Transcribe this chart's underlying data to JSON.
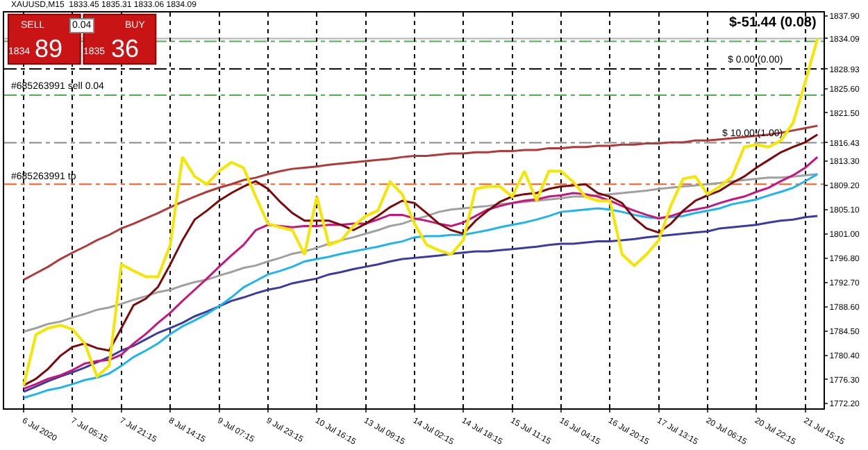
{
  "chart_data": {
    "type": "line",
    "title": "XAUUSD,M15  1833.45 1835.31 1833.06 1834.09",
    "categories": [
      "6 Jul 2020",
      null,
      null,
      null,
      "7 Jul 05:15",
      null,
      null,
      null,
      "7 Jul 21:15",
      null,
      null,
      null,
      "8 Jul 14:15",
      null,
      null,
      null,
      "9 Jul 07:15",
      null,
      null,
      null,
      "9 Jul 23:15",
      null,
      null,
      null,
      "10 Jul 16:15",
      null,
      null,
      null,
      "13 Jul 09:15",
      null,
      null,
      null,
      "14 Jul 02:15",
      null,
      null,
      null,
      "14 Jul 18:15",
      null,
      null,
      null,
      "15 Jul 11:15",
      null,
      null,
      null,
      "16 Jul 04:15",
      null,
      null,
      null,
      "16 Jul 20:15",
      null,
      null,
      null,
      "17 Jul 13:15",
      null,
      null,
      null,
      "20 Jul 06:15",
      null,
      null,
      null,
      "20 Jul 22:15",
      null,
      null,
      null,
      "21 Jul 15:15",
      null
    ],
    "series": [
      {
        "color": "#b03a3a",
        "values": [
          1793.2,
          1794.3,
          1795.4,
          1796.7,
          1797.8,
          1798.8,
          1799.9,
          1800.8,
          1801.9,
          1802.7,
          1803.6,
          1804.5,
          1805.5,
          1806.4,
          1807.3,
          1808.1,
          1808.8,
          1809.4,
          1810.1,
          1810.5,
          1811.1,
          1811.6,
          1812.0,
          1812.2,
          1812.4,
          1812.7,
          1812.9,
          1813.1,
          1813.3,
          1813.5,
          1813.7,
          1814.0,
          1814.2,
          1814.2,
          1814.4,
          1814.6,
          1814.6,
          1814.8,
          1814.8,
          1815.0,
          1815.0,
          1815.2,
          1815.2,
          1815.5,
          1815.5,
          1815.7,
          1815.7,
          1815.9,
          1815.9,
          1816.1,
          1816.1,
          1816.3,
          1816.3,
          1816.5,
          1816.5,
          1816.8,
          1816.8,
          1817.0,
          1817.2,
          1817.4,
          1817.6,
          1817.8,
          1818.1,
          1818.5,
          1818.9,
          1819.3
        ]
      },
      {
        "color": "#a0a0a0",
        "values": [
          1784.4,
          1785.0,
          1785.7,
          1786.1,
          1786.8,
          1787.4,
          1788.1,
          1788.5,
          1789.1,
          1789.8,
          1790.4,
          1791.1,
          1791.5,
          1792.2,
          1792.8,
          1793.2,
          1793.9,
          1794.5,
          1795.2,
          1795.6,
          1796.3,
          1796.9,
          1797.6,
          1798.0,
          1798.6,
          1799.3,
          1799.9,
          1800.4,
          1801.0,
          1801.6,
          1802.3,
          1802.7,
          1803.4,
          1804.0,
          1804.7,
          1805.1,
          1805.3,
          1805.5,
          1805.7,
          1806.0,
          1806.2,
          1806.4,
          1806.6,
          1806.8,
          1807.0,
          1807.3,
          1807.3,
          1807.5,
          1807.7,
          1807.9,
          1808.1,
          1808.3,
          1808.6,
          1808.8,
          1809.0,
          1809.2,
          1809.4,
          1809.6,
          1809.9,
          1810.1,
          1810.3,
          1810.5,
          1810.5,
          1810.7,
          1810.9,
          1811.1
        ]
      },
      {
        "color": "#3a3aa0",
        "values": [
          1774.2,
          1775.1,
          1776.0,
          1776.8,
          1777.5,
          1778.3,
          1779.2,
          1780.1,
          1781.2,
          1782.0,
          1783.1,
          1784.2,
          1785.0,
          1785.9,
          1787.0,
          1787.8,
          1788.7,
          1789.6,
          1790.2,
          1790.9,
          1791.5,
          1791.9,
          1792.6,
          1793.0,
          1793.4,
          1794.1,
          1794.5,
          1795.0,
          1795.4,
          1795.8,
          1796.3,
          1796.7,
          1796.9,
          1797.1,
          1797.3,
          1797.6,
          1797.8,
          1798.0,
          1798.0,
          1798.2,
          1798.4,
          1798.6,
          1798.8,
          1799.1,
          1799.3,
          1799.3,
          1799.5,
          1799.7,
          1799.7,
          1799.9,
          1800.1,
          1800.4,
          1800.6,
          1800.8,
          1801.0,
          1801.2,
          1801.4,
          1801.9,
          1802.1,
          1802.3,
          1802.5,
          1802.9,
          1803.2,
          1803.4,
          1803.8,
          1804.0
        ]
      },
      {
        "color": "#1eb4ec",
        "values": [
          1773.2,
          1773.8,
          1774.5,
          1774.9,
          1775.5,
          1776.2,
          1776.6,
          1777.3,
          1778.6,
          1780.1,
          1781.2,
          1782.4,
          1784.0,
          1785.3,
          1786.3,
          1787.4,
          1788.7,
          1790.2,
          1791.9,
          1793.0,
          1794.1,
          1794.7,
          1795.4,
          1796.3,
          1796.7,
          1797.1,
          1797.6,
          1798.0,
          1798.4,
          1798.8,
          1799.3,
          1799.7,
          1800.4,
          1800.6,
          1800.6,
          1800.8,
          1800.8,
          1801.2,
          1801.6,
          1802.1,
          1802.5,
          1802.9,
          1803.4,
          1804.0,
          1804.7,
          1804.9,
          1805.1,
          1805.3,
          1805.1,
          1804.7,
          1804.2,
          1803.8,
          1803.6,
          1803.8,
          1804.0,
          1804.5,
          1804.9,
          1805.3,
          1806.0,
          1806.4,
          1806.8,
          1807.5,
          1808.1,
          1808.8,
          1809.9,
          1811.1
        ]
      },
      {
        "color": "#c8157e",
        "values": [
          1774.7,
          1775.5,
          1776.4,
          1777.0,
          1777.9,
          1779.0,
          1779.4,
          1779.6,
          1780.5,
          1782.4,
          1784.0,
          1785.9,
          1787.6,
          1789.6,
          1791.5,
          1793.4,
          1795.4,
          1797.3,
          1799.1,
          1801.6,
          1802.5,
          1802.3,
          1802.1,
          1802.3,
          1802.3,
          1802.5,
          1802.5,
          1802.7,
          1802.7,
          1803.4,
          1804.2,
          1804.2,
          1803.6,
          1803.2,
          1802.7,
          1802.3,
          1802.9,
          1804.0,
          1805.1,
          1805.7,
          1806.2,
          1806.6,
          1806.8,
          1807.3,
          1807.5,
          1807.9,
          1807.7,
          1807.3,
          1806.6,
          1805.7,
          1804.9,
          1804.2,
          1803.6,
          1804.0,
          1804.7,
          1805.1,
          1805.5,
          1806.2,
          1806.8,
          1807.3,
          1808.1,
          1808.8,
          1809.9,
          1810.9,
          1812.2,
          1814.0
        ]
      },
      {
        "color": "#7a0a0a",
        "values": [
          1775.3,
          1776.4,
          1778.1,
          1780.3,
          1781.8,
          1782.4,
          1781.6,
          1781.2,
          1785.0,
          1788.9,
          1790.0,
          1792.0,
          1795.8,
          1799.9,
          1803.4,
          1804.9,
          1806.6,
          1807.9,
          1809.0,
          1809.9,
          1808.6,
          1806.4,
          1804.5,
          1803.2,
          1803.2,
          1803.2,
          1802.5,
          1801.6,
          1802.7,
          1804.0,
          1805.5,
          1806.6,
          1806.2,
          1804.5,
          1802.7,
          1801.6,
          1801.0,
          1803.2,
          1804.9,
          1806.4,
          1807.3,
          1807.7,
          1807.9,
          1808.6,
          1809.0,
          1809.2,
          1809.4,
          1807.9,
          1807.3,
          1806.2,
          1803.6,
          1801.9,
          1801.2,
          1802.7,
          1804.9,
          1806.6,
          1807.5,
          1808.3,
          1809.6,
          1810.7,
          1812.2,
          1813.5,
          1814.8,
          1815.7,
          1816.5,
          1817.8
        ]
      },
      {
        "color": "#f5e600",
        "values": [
          1775.3,
          1783.9,
          1785.0,
          1785.5,
          1784.8,
          1782.4,
          1776.8,
          1778.6,
          1795.8,
          1794.7,
          1793.7,
          1793.7,
          1799.1,
          1814.0,
          1810.7,
          1809.4,
          1811.6,
          1813.1,
          1812.2,
          1807.3,
          1802.7,
          1802.1,
          1801.6,
          1797.5,
          1807.3,
          1799.1,
          1799.9,
          1802.3,
          1804.0,
          1804.9,
          1809.8,
          1807.7,
          1802.7,
          1799.1,
          1798.2,
          1797.5,
          1799.9,
          1808.6,
          1809.0,
          1809.0,
          1807.3,
          1811.6,
          1806.6,
          1811.6,
          1811.6,
          1809.8,
          1807.3,
          1806.6,
          1806.6,
          1797.5,
          1795.6,
          1797.5,
          1799.9,
          1805.8,
          1810.3,
          1810.7,
          1807.7,
          1809.0,
          1810.7,
          1815.7,
          1816.1,
          1815.7,
          1816.8,
          1819.8,
          1826.7,
          1834.1
        ]
      }
    ],
    "ylim": [
      1771.4,
      1838.5
    ],
    "yticks": [
      {
        "value": 1837.9,
        "label": "1837.90"
      },
      {
        "value": 1834.09,
        "label": "1834.09"
      },
      {
        "value": 1828.93,
        "label": "1828.93"
      },
      {
        "value": 1825.6,
        "label": "1825.60"
      },
      {
        "value": 1821.5,
        "label": "1821.50"
      },
      {
        "value": 1816.43,
        "label": "1816.43"
      },
      {
        "value": 1813.3,
        "label": "1813.30"
      },
      {
        "value": 1809.2,
        "label": "1809.20"
      },
      {
        "value": 1805.1,
        "label": "1805.10"
      },
      {
        "value": 1801.0,
        "label": "1801.00"
      },
      {
        "value": 1796.8,
        "label": "1796.80"
      },
      {
        "value": 1792.7,
        "label": "1792.70"
      },
      {
        "value": 1788.6,
        "label": "1788.60"
      },
      {
        "value": 1784.5,
        "label": "1784.50"
      },
      {
        "value": 1780.4,
        "label": "1780.40"
      },
      {
        "value": 1776.3,
        "label": "1776.30"
      },
      {
        "value": 1772.2,
        "label": "1772.20"
      }
    ],
    "grid": "x",
    "ref_lines": [
      {
        "axis": "y",
        "value": 1834.09,
        "color": "#b4b4b4",
        "line_style": "solid"
      },
      {
        "axis": "y",
        "value": 1833.6,
        "color": "#4caf50",
        "line_style": "dashed"
      },
      {
        "axis": "y",
        "value": 1828.93,
        "color": "#000000",
        "line_style": "dashed"
      },
      {
        "axis": "y",
        "value": 1824.5,
        "color": "#4caf50",
        "line_style": "dashed",
        "label": "#685263991 sell 0.04"
      },
      {
        "axis": "y",
        "value": 1816.43,
        "color": "#888888",
        "line_style": "dashed"
      },
      {
        "axis": "y",
        "value": 1809.4,
        "color": "#ff5a1e",
        "line_style": "dashed",
        "label": "#685263991 tp"
      }
    ],
    "annotations": [
      "$-51.44 (0.08)",
      "SELL",
      "0.04",
      "BUY",
      "1834",
      "89",
      "1835",
      "36",
      {
        "text": "$ 0.00 (0.00)",
        "y": 1828.93
      },
      {
        "text": "$ 10.00 (1.00)",
        "y": 1816.43
      }
    ]
  }
}
